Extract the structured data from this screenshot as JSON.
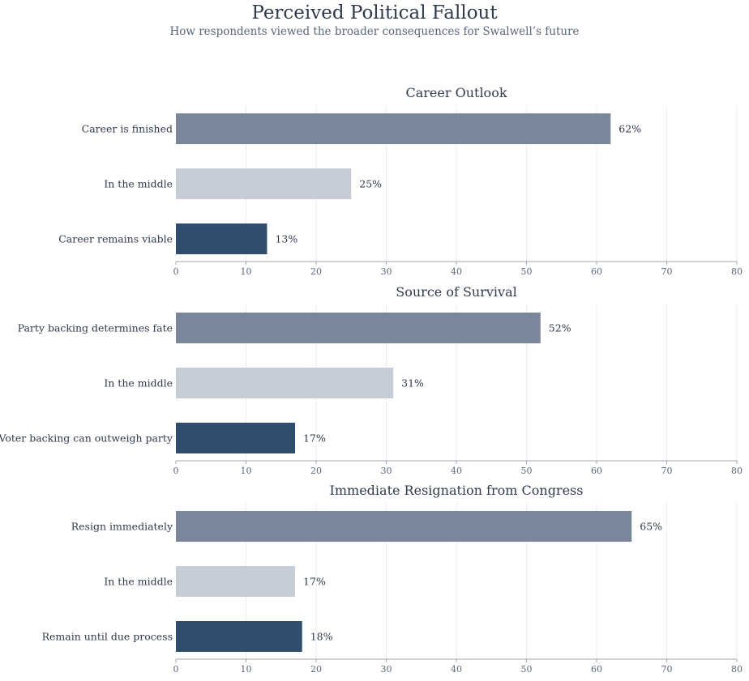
{
  "header": {
    "title": "Perceived Political Fallout",
    "subtitle": "How respondents viewed the broader consequences for Swalwell’s future"
  },
  "colors": {
    "primary": "#7a879b",
    "middle": "#c6cdd6",
    "dark": "#2f4e6d",
    "grid": "#eeeeee",
    "axis": "#a0a7b2"
  },
  "chart_data": [
    {
      "type": "bar",
      "orientation": "horizontal",
      "title": "Career Outlook",
      "categories": [
        "Career is finished",
        "In the middle",
        "Career remains viable"
      ],
      "values": [
        62,
        25,
        13
      ],
      "value_labels": [
        "62%",
        "25%",
        "13%"
      ],
      "xlim": [
        0,
        80
      ],
      "xticks": [
        0,
        10,
        20,
        30,
        40,
        50,
        60,
        70,
        80
      ],
      "grid": true
    },
    {
      "type": "bar",
      "orientation": "horizontal",
      "title": "Source of Survival",
      "categories": [
        "Party backing determines fate",
        "In the middle",
        "Voter backing can outweigh party"
      ],
      "values": [
        52,
        31,
        17
      ],
      "value_labels": [
        "52%",
        "31%",
        "17%"
      ],
      "xlim": [
        0,
        80
      ],
      "xticks": [
        0,
        10,
        20,
        30,
        40,
        50,
        60,
        70,
        80
      ],
      "grid": true
    },
    {
      "type": "bar",
      "orientation": "horizontal",
      "title": "Immediate Resignation from Congress",
      "categories": [
        "Resign immediately",
        "In the middle",
        "Remain until due process"
      ],
      "values": [
        65,
        17,
        18
      ],
      "value_labels": [
        "65%",
        "17%",
        "18%"
      ],
      "xlim": [
        0,
        80
      ],
      "xticks": [
        0,
        10,
        20,
        30,
        40,
        50,
        60,
        70,
        80
      ],
      "grid": true
    }
  ]
}
